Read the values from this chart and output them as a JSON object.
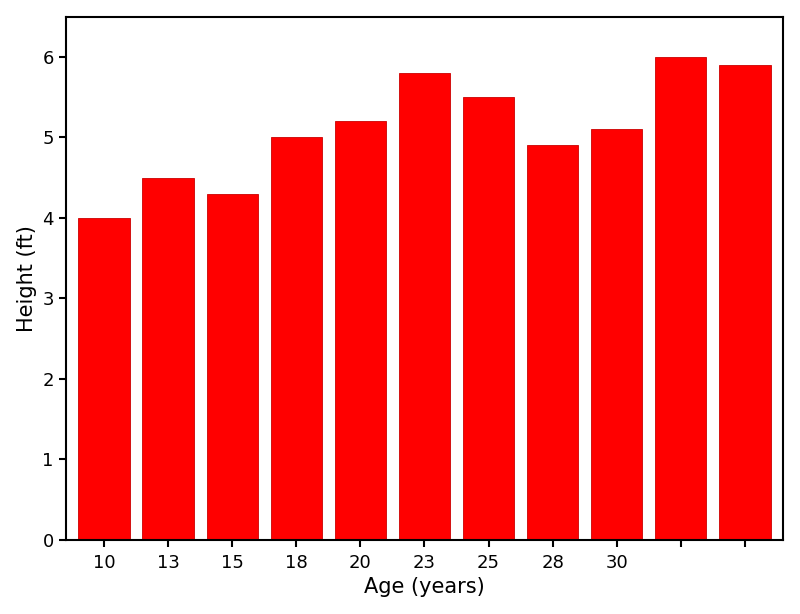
{
  "age_positions": [
    0,
    1,
    2,
    3,
    4,
    5,
    6,
    7,
    8,
    9,
    10
  ],
  "height": [
    4.0,
    4.5,
    4.3,
    5.0,
    5.2,
    5.8,
    5.5,
    4.9,
    5.1,
    6.0,
    5.9
  ],
  "bar_color": "#ff0000",
  "bar_edge_color": "#cc0000",
  "xlabel": "Age (years)",
  "ylabel": "Height (ft)",
  "ylim": [
    0,
    6.5
  ],
  "yticks": [
    0,
    1,
    2,
    3,
    4,
    5,
    6
  ],
  "tick_label_positions": [
    0,
    1,
    2,
    3,
    4,
    5,
    6,
    7,
    8,
    9,
    10
  ],
  "tick_labels": [
    "10",
    "13",
    "",
    "15",
    "",
    "18",
    "20",
    "",
    "23",
    "25",
    ""
  ],
  "background_color": "#ffffff",
  "label_fontsize": 15,
  "tick_fontsize": 13,
  "bar_width": 0.8,
  "spine_linewidth": 1.5
}
